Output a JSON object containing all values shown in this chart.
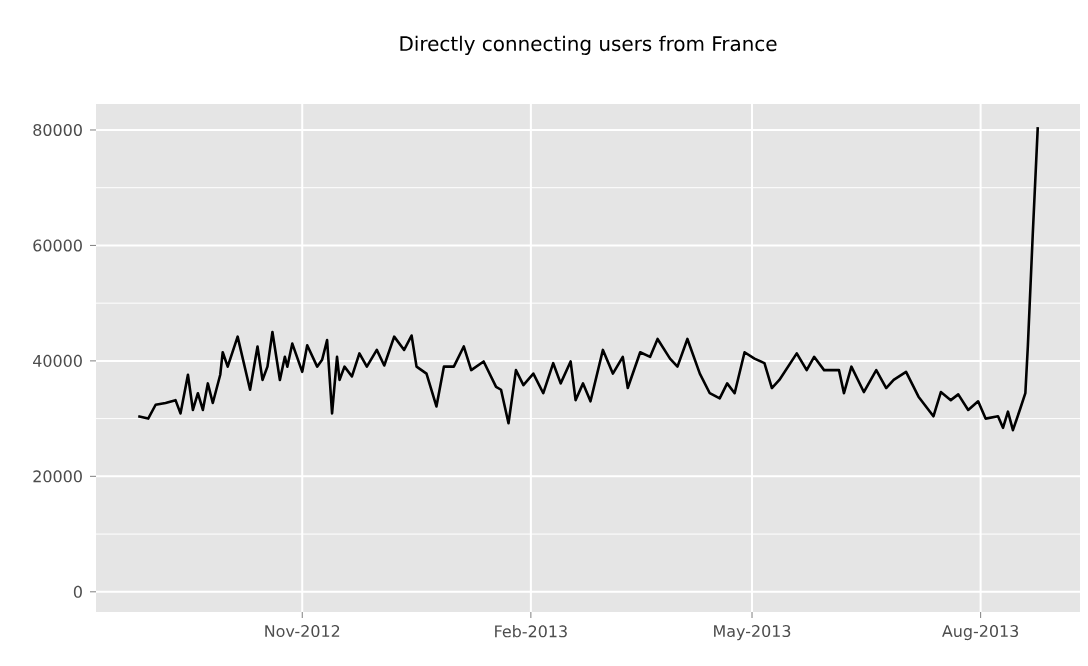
{
  "chart_data": {
    "type": "line",
    "title": "Directly connecting users from France",
    "x": [
      "2012-08-27",
      "2012-08-31",
      "2012-09-03",
      "2012-09-07",
      "2012-09-11",
      "2012-09-13",
      "2012-09-16",
      "2012-09-18",
      "2012-09-20",
      "2012-09-22",
      "2012-09-24",
      "2012-09-26",
      "2012-09-29",
      "2012-09-30",
      "2012-10-02",
      "2012-10-06",
      "2012-10-11",
      "2012-10-14",
      "2012-10-16",
      "2012-10-18",
      "2012-10-20",
      "2012-10-23",
      "2012-10-25",
      "2012-10-26",
      "2012-10-28",
      "2012-11-01",
      "2012-11-03",
      "2012-11-07",
      "2012-11-09",
      "2012-11-11",
      "2012-11-13",
      "2012-11-15",
      "2012-11-16",
      "2012-11-18",
      "2012-11-21",
      "2012-11-24",
      "2012-11-27",
      "2012-12-01",
      "2012-12-04",
      "2012-12-08",
      "2012-12-12",
      "2012-12-15",
      "2012-12-17",
      "2012-12-21",
      "2012-12-25",
      "2012-12-28",
      "2013-01-01",
      "2013-01-05",
      "2013-01-08",
      "2013-01-13",
      "2013-01-18",
      "2013-01-20",
      "2013-01-23",
      "2013-01-26",
      "2013-01-29",
      "2013-02-02",
      "2013-02-06",
      "2013-02-10",
      "2013-02-13",
      "2013-02-17",
      "2013-02-19",
      "2013-02-22",
      "2013-02-25",
      "2013-03-02",
      "2013-03-06",
      "2013-03-10",
      "2013-03-12",
      "2013-03-17",
      "2013-03-21",
      "2013-03-24",
      "2013-03-29",
      "2013-04-01",
      "2013-04-05",
      "2013-04-10",
      "2013-04-14",
      "2013-04-18",
      "2013-04-21",
      "2013-04-24",
      "2013-04-28",
      "2013-05-02",
      "2013-05-06",
      "2013-05-09",
      "2013-05-12",
      "2013-05-19",
      "2013-05-23",
      "2013-05-26",
      "2013-05-30",
      "2013-06-05",
      "2013-06-07",
      "2013-06-10",
      "2013-06-15",
      "2013-06-20",
      "2013-06-24",
      "2013-06-27",
      "2013-07-02",
      "2013-07-07",
      "2013-07-13",
      "2013-07-16",
      "2013-07-20",
      "2013-07-23",
      "2013-07-27",
      "2013-07-31",
      "2013-08-03",
      "2013-08-08",
      "2013-08-10",
      "2013-08-12",
      "2013-08-14",
      "2013-08-17",
      "2013-08-19",
      "2013-08-20",
      "2013-08-22",
      "2013-08-24"
    ],
    "series": [
      {
        "color": "#000000",
        "values": [
          30400,
          30000,
          32400,
          32700,
          33200,
          30900,
          37600,
          31500,
          34400,
          31500,
          36100,
          32700,
          37600,
          41500,
          39000,
          44200,
          35000,
          42500,
          36700,
          39000,
          45000,
          36700,
          40700,
          39000,
          43000,
          38100,
          42700,
          39000,
          40200,
          43600,
          30900,
          40700,
          36700,
          39000,
          37300,
          41300,
          39000,
          41900,
          39200,
          44200,
          41900,
          44400,
          39000,
          37800,
          32100,
          39000,
          39000,
          42500,
          38400,
          39900,
          35500,
          35000,
          29200,
          38400,
          35800,
          37800,
          34400,
          39600,
          36100,
          39900,
          33200,
          36100,
          33000,
          41900,
          37800,
          40700,
          35300,
          41500,
          40700,
          43800,
          40400,
          39000,
          43800,
          37800,
          34400,
          33500,
          36100,
          34400,
          41500,
          40400,
          39600,
          35300,
          36700,
          41300,
          38400,
          40700,
          38400,
          38400,
          34400,
          39000,
          34600,
          38400,
          35300,
          36700,
          38100,
          33800,
          30400,
          34600,
          33200,
          34200,
          31500,
          33000,
          30000,
          30400,
          28400,
          31200,
          28000,
          31800,
          34400,
          42500,
          62100,
          80500
        ]
      }
    ],
    "xlim": [
      "2012-08-10",
      "2013-09-10"
    ],
    "xticks": [
      {
        "value": "2012-11-01",
        "label": "Nov-2012"
      },
      {
        "value": "2013-02-01",
        "label": "Feb-2013"
      },
      {
        "value": "2013-05-01",
        "label": "May-2013"
      },
      {
        "value": "2013-08-01",
        "label": "Aug-2013"
      }
    ],
    "ylim": [
      -3500,
      84500
    ],
    "yticks": [
      0,
      20000,
      40000,
      60000,
      80000
    ],
    "grid": true,
    "marker": "none",
    "line_style": "solid"
  }
}
